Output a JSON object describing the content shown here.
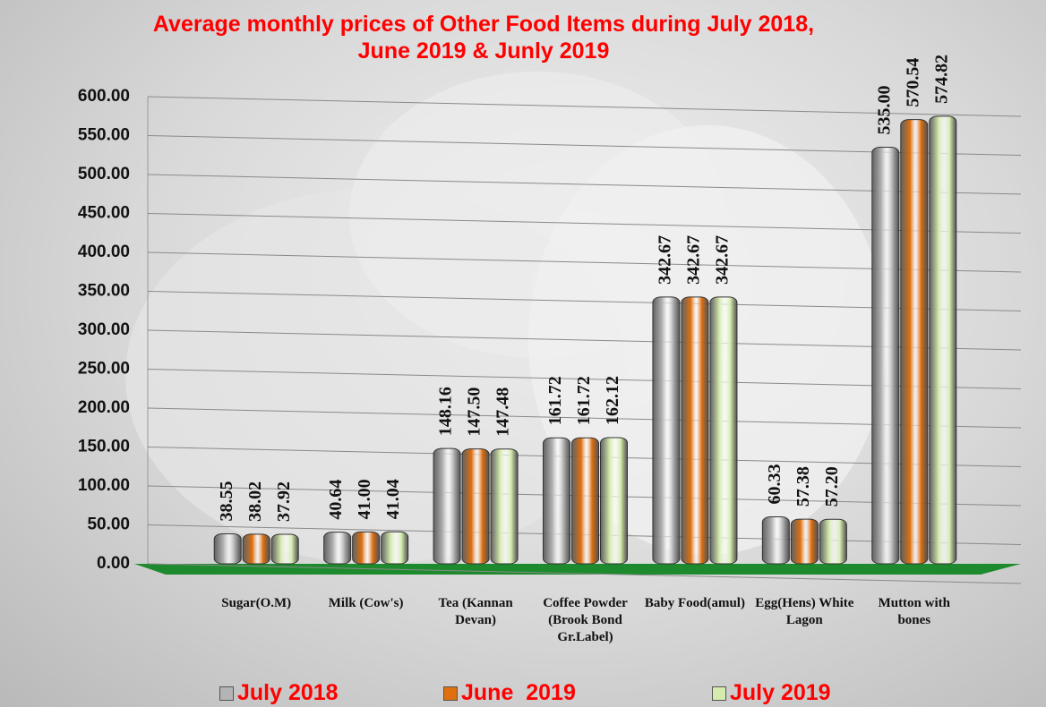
{
  "chart_data": {
    "type": "bar",
    "title": "Average monthly prices of Other Food Items during July 2018,\nJune  2019 & Junly 2019",
    "categories": [
      "Sugar(O.M)",
      "Milk (Cow's)",
      "Tea (Kannan Devan)",
      "Coffee Powder (Brook Bond Gr.Label)",
      "Baby Food(amul)",
      "Egg(Hens) White Lagon",
      "Mutton with bones"
    ],
    "series": [
      {
        "name": "July 2018",
        "color": "#b4b4b4",
        "values": [
          38.55,
          40.64,
          148.16,
          161.72,
          342.67,
          60.33,
          535.0
        ],
        "value_labels": [
          "38.55",
          "40.64",
          "148.16",
          "161.72",
          "342.67",
          "60.33",
          "535.00"
        ]
      },
      {
        "name": "June  2019",
        "color": "#e0700f",
        "values": [
          38.02,
          41.0,
          147.5,
          161.72,
          342.67,
          57.38,
          570.54
        ],
        "value_labels": [
          "38.02",
          "41.00",
          "147.50",
          "161.72",
          "342.67",
          "57.38",
          "570.54"
        ]
      },
      {
        "name": "July 2019",
        "color": "#d6ecae",
        "values": [
          37.92,
          41.04,
          147.48,
          162.12,
          342.67,
          57.2,
          574.82
        ],
        "value_labels": [
          "37.92",
          "41.04",
          "147.48",
          "162.12",
          "342.67",
          "57.20",
          "574.82"
        ]
      }
    ],
    "ylim": [
      0,
      600
    ],
    "yticks": [
      {
        "value": 0,
        "label": "0.00"
      },
      {
        "value": 50,
        "label": "50.00"
      },
      {
        "value": 100,
        "label": "100.00"
      },
      {
        "value": 150,
        "label": "150.00"
      },
      {
        "value": 200,
        "label": "200.00"
      },
      {
        "value": 250,
        "label": "250.00"
      },
      {
        "value": 300,
        "label": "300.00"
      },
      {
        "value": 350,
        "label": "350.00"
      },
      {
        "value": 400,
        "label": "400.00"
      },
      {
        "value": 450,
        "label": "450.00"
      },
      {
        "value": 500,
        "label": "500.00"
      },
      {
        "value": 550,
        "label": "550.00"
      },
      {
        "value": 600,
        "label": "600.00"
      }
    ],
    "grid": true
  }
}
